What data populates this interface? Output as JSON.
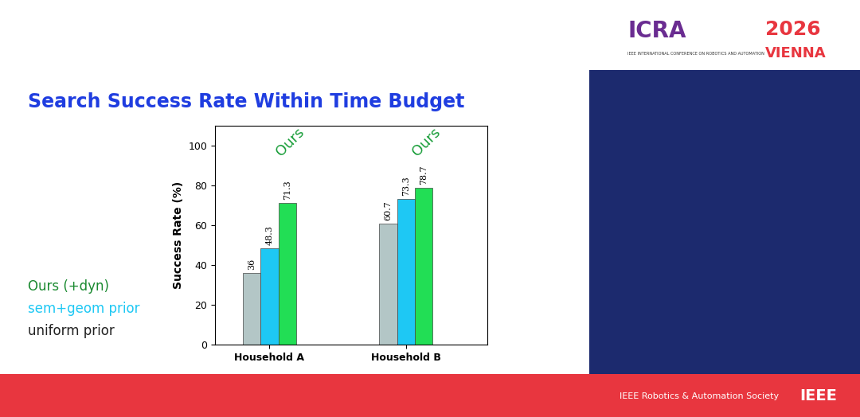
{
  "chart_data": {
    "type": "bar",
    "title": "Search Success Rate Within Time Budget",
    "y_label": "Success Rate (%)",
    "categories": [
      "Household A",
      "Household B"
    ],
    "series": [
      {
        "name": "uniform prior",
        "color": "#b3c6c6",
        "values": [
          36,
          60.7
        ]
      },
      {
        "name": "sem+geom prior",
        "color": "#1ec8f4",
        "values": [
          48.3,
          73.3
        ]
      },
      {
        "name": "Ours (+dyn)",
        "color": "#22de55",
        "values": [
          71.3,
          78.7
        ]
      }
    ],
    "ylim": [
      0,
      110
    ],
    "yticks": [
      0,
      20,
      40,
      60,
      80,
      100
    ],
    "grid": false,
    "data_labels": true,
    "annotations": [
      {
        "text": "Ours",
        "category": "Household A"
      },
      {
        "text": "Ours",
        "category": "Household B"
      }
    ]
  },
  "slide": {
    "logo": {
      "name": "ICRA",
      "subtitle": "IEEE INTERNATIONAL CONFERENCE ON ROBOTICS AND AUTOMATION",
      "year": "2026",
      "city": "VIENNA"
    },
    "footer": [
      "IEEE Robotics & Automation Society",
      "IEEE"
    ]
  }
}
